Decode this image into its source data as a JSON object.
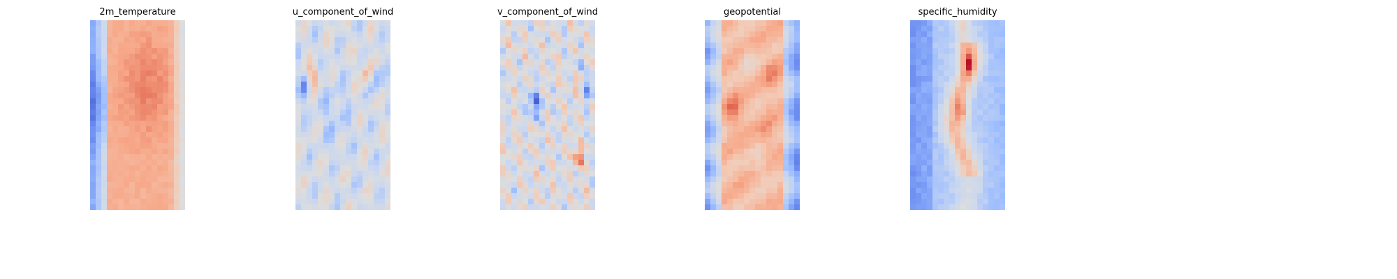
{
  "figure": {
    "background": "#ffffff"
  },
  "colormap": {
    "name": "coolwarm",
    "stops": [
      "#3b4cc0",
      "#6788ee",
      "#9abbff",
      "#c9d7f0",
      "#dddddd",
      "#f2cbb7",
      "#f7a889",
      "#e26952",
      "#b40426"
    ]
  },
  "chart_data": [
    {
      "type": "heatmap",
      "title": "2m_temperature",
      "pattern": "band_warm",
      "seed": 11,
      "rows": 34,
      "cols": 17
    },
    {
      "type": "heatmap",
      "title": "u_component_of_wind",
      "pattern": "wave_u",
      "seed": 23,
      "rows": 34,
      "cols": 17
    },
    {
      "type": "heatmap",
      "title": "v_component_of_wind",
      "pattern": "wave_v",
      "seed": 37,
      "rows": 34,
      "cols": 17
    },
    {
      "type": "heatmap",
      "title": "geopotential",
      "pattern": "band_blobs",
      "seed": 41,
      "rows": 34,
      "cols": 17
    },
    {
      "type": "heatmap",
      "title": "specific_humidity",
      "pattern": "humidity",
      "seed": 53,
      "rows": 34,
      "cols": 17
    }
  ]
}
